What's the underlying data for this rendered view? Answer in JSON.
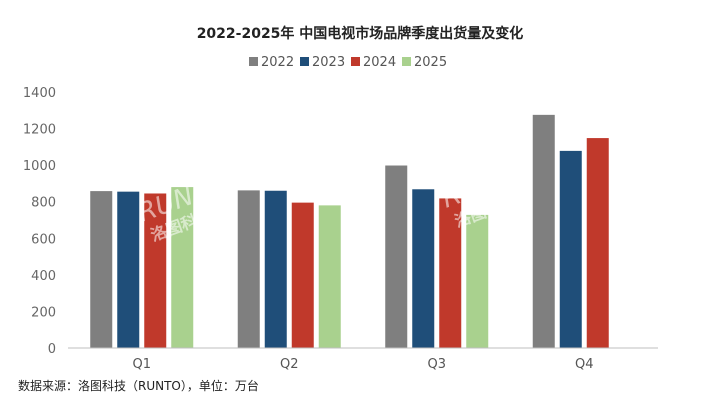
{
  "chart_data": {
    "type": "bar",
    "title": "2022-2025年 中国电视市场品牌季度出货量及变化",
    "categories": [
      "Q1",
      "Q2",
      "Q3",
      "Q4"
    ],
    "series": [
      {
        "name": "2022",
        "color": "#7f7f7f",
        "values": [
          858,
          862,
          998,
          1275
        ]
      },
      {
        "name": "2023",
        "color": "#1f4e79",
        "values": [
          855,
          860,
          868,
          1078
        ]
      },
      {
        "name": "2024",
        "color": "#c0392b",
        "values": [
          845,
          795,
          818,
          1148
        ]
      },
      {
        "name": "2025",
        "color": "#a9d18e",
        "values": [
          880,
          780,
          728,
          null
        ]
      }
    ],
    "ylim": [
      0,
      1400
    ],
    "yticks": [
      0,
      200,
      400,
      600,
      800,
      1000,
      1200,
      1400
    ],
    "legend_position": "top-center",
    "grid": false
  },
  "source_note": "数据来源：洛图科技（RUNTO），单位：万台",
  "watermark": {
    "brand": "RUNTO",
    "sub": "洛图科技"
  }
}
